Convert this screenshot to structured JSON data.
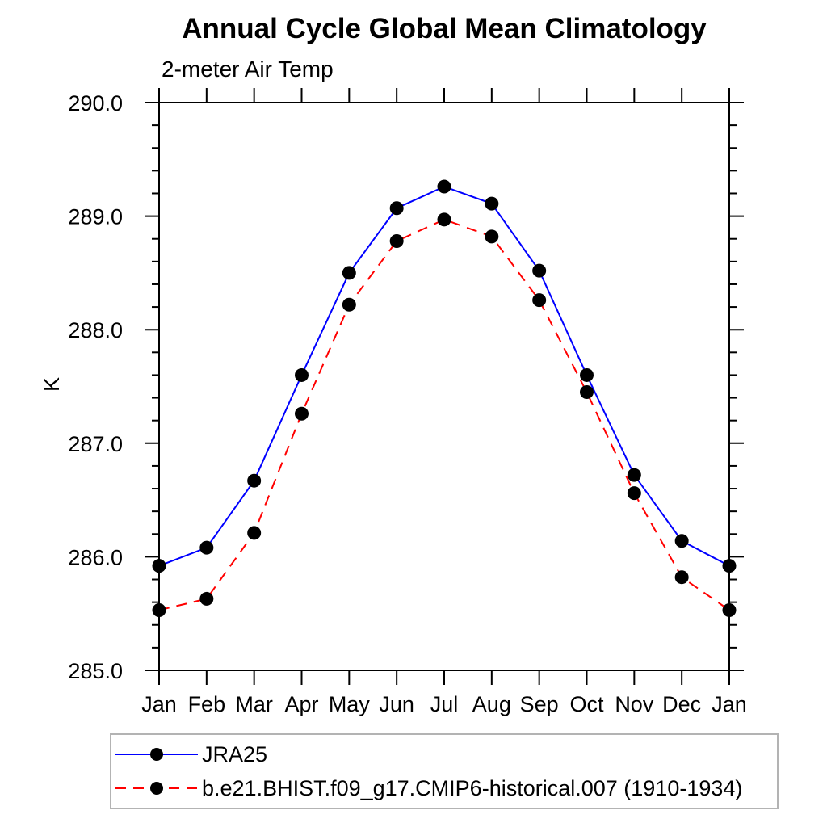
{
  "chart_data": {
    "type": "line",
    "title": "Annual Cycle Global Mean Climatology",
    "subtitle": "2-meter Air Temp",
    "ylabel": "K",
    "xlabel": "",
    "x_categories": [
      "Jan",
      "Feb",
      "Mar",
      "Apr",
      "May",
      "Jun",
      "Jul",
      "Aug",
      "Sep",
      "Oct",
      "Nov",
      "Dec",
      "Jan"
    ],
    "ylim": [
      285.0,
      290.0
    ],
    "ytick_interval": 1.0,
    "yminor_interval": 0.2,
    "ytick_labels": [
      "285.0",
      "286.0",
      "287.0",
      "288.0",
      "289.0",
      "290.0"
    ],
    "grid": false,
    "legend_position": "bottom-left",
    "series": [
      {
        "name": "JRA25",
        "color": "#0000ff",
        "line_style": "solid",
        "marker": "filled-circle",
        "marker_color": "#000000",
        "values": [
          285.92,
          286.08,
          286.67,
          287.6,
          288.5,
          289.07,
          289.26,
          289.11,
          288.52,
          287.6,
          286.72,
          286.14,
          285.92
        ]
      },
      {
        "name": "b.e21.BHIST.f09_g17.CMIP6-historical.007 (1910-1934)",
        "color": "#ff0000",
        "line_style": "dashed",
        "marker": "filled-circle",
        "marker_color": "#000000",
        "values": [
          285.53,
          285.63,
          286.21,
          287.26,
          288.22,
          288.78,
          288.97,
          288.82,
          288.26,
          287.45,
          286.56,
          285.82,
          285.53
        ]
      }
    ]
  }
}
